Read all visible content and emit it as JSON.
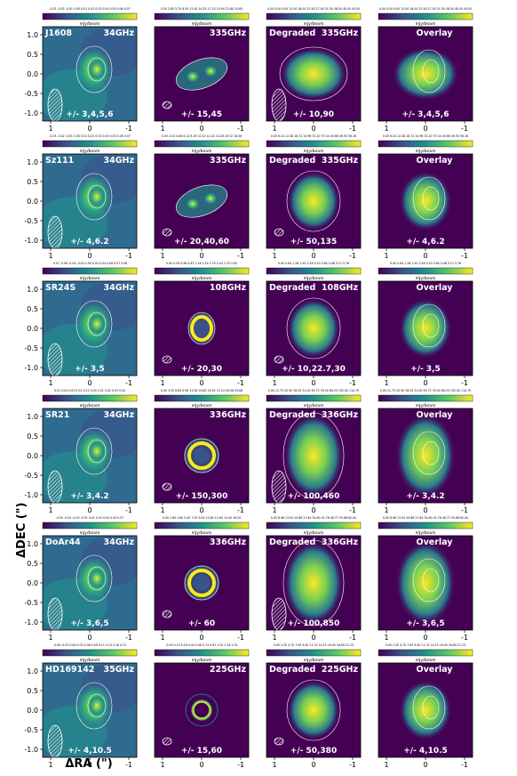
{
  "figure": {
    "ylabel": "ΔDEC (\")",
    "xlabel": "ΔRA (\")",
    "unit": "mJy/beam",
    "ticks": [
      "1",
      "0",
      "-1"
    ],
    "ytick_labels": [
      "1.0",
      "0.5",
      "0.0",
      "-0.5",
      "-1.0"
    ],
    "colors": {
      "cmap": [
        "#440154",
        "#3b528b",
        "#21918c",
        "#5ec962",
        "#fde725"
      ]
    }
  },
  "rows": [
    {
      "source": "J1608",
      "freq": "34GHz",
      "alma": "335GHz",
      "cont": [
        "+/- 3,4,5,6",
        "+/- 15,45",
        "+/- 10,90",
        "+/- 3,4,5,6"
      ],
      "cbars": [
        "-0.03 -0.02 -0.01 0.00 0.01 0.02 0.03 0.04 0.05 0.06 0.07",
        "0.00 2.85 5.70 8.55 11.40 14.25 17.10 19.95 22.80 25.65",
        "0.00 4.50 9.00 13.50 18.00 22.50 27.00 31.50 36.00 40.50 45.00",
        "0.00 4.50 9.00 13.50 18.00 22.50 27.00 31.50 36.00 40.50 45.00"
      ]
    },
    {
      "source": "Sz111",
      "freq": "34GHz",
      "alma": "335GHz",
      "cont": [
        "+/- 4,6.2",
        "+/- 20,40,60",
        "+/- 50,135",
        "+/- 4,6.2"
      ],
      "cbars": [
        "-0.03 -0.02 -0.01 0.00 0.01 0.02 0.03 0.04 0.05 0.06 0.07",
        "0.00 2.04 4.08 6.12 8.16 10.20 12.24 14.28 16.32 18.36",
        "0.00 6.24 12.48 18.72 24.96 31.20 37.44 43.68 49.92 56.16",
        "0.00 6.24 12.48 18.72 24.96 31.20 37.44 43.68 49.92 56.16"
      ]
    },
    {
      "source": "SR24S",
      "freq": "34GHz",
      "alma": "108GHz",
      "cont": [
        "+/- 3,5",
        "+/- 20,30",
        "+/- 10,22.7,30",
        "+/- 3,5"
      ],
      "cbars": [
        "-0.07 -0.06 -0.04 -0.02 0.00 0.02 0.04 0.06 0.07 0.08",
        "0.00 0.29 0.58 0.87 1.16 1.45 1.75 2.04 2.33 2.62",
        "0.00 0.64 1.28 1.92 2.56 3.20 3.84 4.48 5.12 5.76",
        "0.00 0.64 1.28 1.92 2.56 3.20 3.84 4.48 5.12 5.76"
      ]
    },
    {
      "source": "SR21",
      "freq": "34GHz",
      "alma": "336GHz",
      "cont": [
        "+/- 3,4.2",
        "+/- 150,300",
        "+/- 100,460",
        "+/- 3,4.2"
      ],
      "cbars": [
        "0.01 0.04 0.03 0.02 0.01 0.00 0.01 0.02 0.03 0.04",
        "0.00 3.32 6.64 9.96 13.28 16.60 19.92 23.24 26.56 29.88",
        "0.00 12.75 25.50 38.25 51.00 63.75 76.50 89.25 102.00 114.75",
        "0.00 12.75 25.50 38.25 51.00 63.75 76.50 89.25 102.00 114.75"
      ]
    },
    {
      "source": "DoAr44",
      "freq": "34GHz",
      "alma": "336GHz",
      "cont": [
        "+/- 3,6,5",
        "+/- 60",
        "+/- 100,850",
        "+/- 3,6,5"
      ],
      "cbars": [
        "-0.05 -0.04 -0.03 -0.01 0.01 0.03 0.04 0.05 0.07",
        "0.00 1.80 3.60 5.40 7.20 9.00 10.80 12.60 14.40 16.20",
        "0.00 6.96 13.92 20.88 27.84 34.80 41.76 48.72 55.68 62.64",
        "0.00 6.96 13.92 20.88 27.84 34.80 41.76 48.72 55.68 62.64"
      ]
    },
    {
      "source": "HD169142",
      "freq": "35GHz",
      "alma": "225GHz",
      "cont": [
        "+/- 4,10.5",
        "+/- 15,60",
        "+/- 50,380",
        "+/- 4,10.5"
      ],
      "cbars": [
        "-0.06 -0.03 0.00 0.03 0.06 0.09 0.11 0.15 0.18 0.21",
        "-0.05 0.15 0.29 0.44 0.58 0.73 0.87 1.02 1.16 1.31",
        "0.00 2.35 4.70 7.05 9.40 11.75 14.10 16.45 18.80 21.15",
        "0.00 2.35 4.70 7.05 9.40 11.75 14.10 16.45 18.80 21.15"
      ]
    }
  ],
  "panel_titles": {
    "degraded": "Degraded",
    "overlay": "Overlay"
  }
}
